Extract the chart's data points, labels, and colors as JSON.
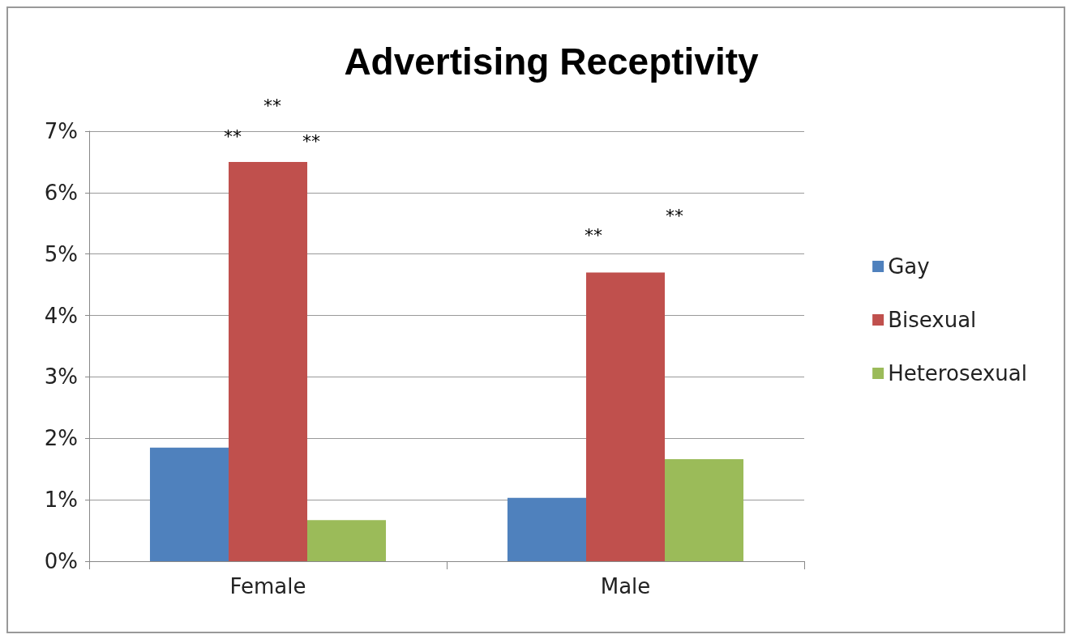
{
  "chart_data": {
    "type": "bar",
    "title": "Advertising Receptivity",
    "categories": [
      "Female",
      "Male"
    ],
    "series": [
      {
        "name": "Gay",
        "color": "#4f81bd",
        "values": [
          1.85,
          1.03
        ]
      },
      {
        "name": "Bisexual",
        "color": "#c0504d",
        "values": [
          6.5,
          4.7
        ]
      },
      {
        "name": "Heterosexual",
        "color": "#9bbb59",
        "values": [
          0.67,
          1.66
        ]
      }
    ],
    "ylim": [
      0,
      7
    ],
    "yticks": [
      {
        "value": 0,
        "label": "0%"
      },
      {
        "value": 1,
        "label": "1%"
      },
      {
        "value": 2,
        "label": "2%"
      },
      {
        "value": 3,
        "label": "3%"
      },
      {
        "value": 4,
        "label": "4%"
      },
      {
        "value": 5,
        "label": "5%"
      },
      {
        "value": 6,
        "label": "6%"
      },
      {
        "value": 7,
        "label": "7%"
      }
    ],
    "grid": "y",
    "legend": "right",
    "annotations": [
      "**",
      "**",
      "**",
      "**",
      "**"
    ]
  }
}
